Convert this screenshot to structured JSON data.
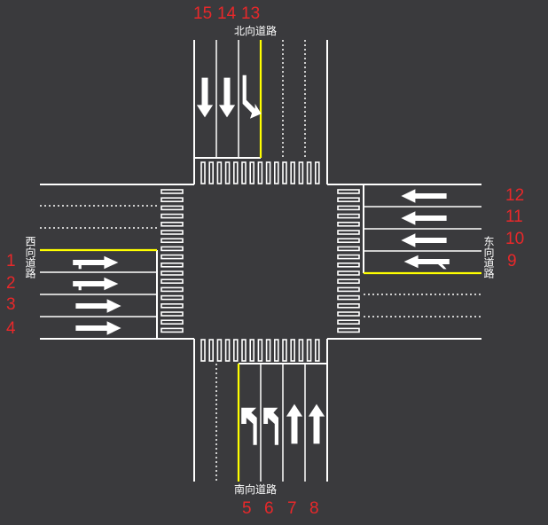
{
  "roads": {
    "north": "北向道路",
    "south": "南向道路",
    "west": "西向道路",
    "east": "东向道路"
  },
  "lane_numbers": {
    "west": [
      "1",
      "2",
      "3",
      "4"
    ],
    "south": [
      "5",
      "6",
      "7",
      "8"
    ],
    "east": [
      "9",
      "10",
      "11",
      "12"
    ],
    "north": [
      "15",
      "14",
      "13"
    ]
  },
  "colors": {
    "background": "#3a3a3d",
    "marking": "#ffffff",
    "center_line": "#ffff00",
    "numbers": "#e8282a"
  },
  "lane_arrows": {
    "north": [
      "straight",
      "straight",
      "straight-right"
    ],
    "south": [
      "left",
      "left-straight",
      "straight",
      "straight"
    ],
    "east": [
      "straight",
      "straight",
      "straight",
      "straight-left"
    ],
    "west": [
      "straight-left",
      "straight-left",
      "straight",
      "straight"
    ]
  }
}
